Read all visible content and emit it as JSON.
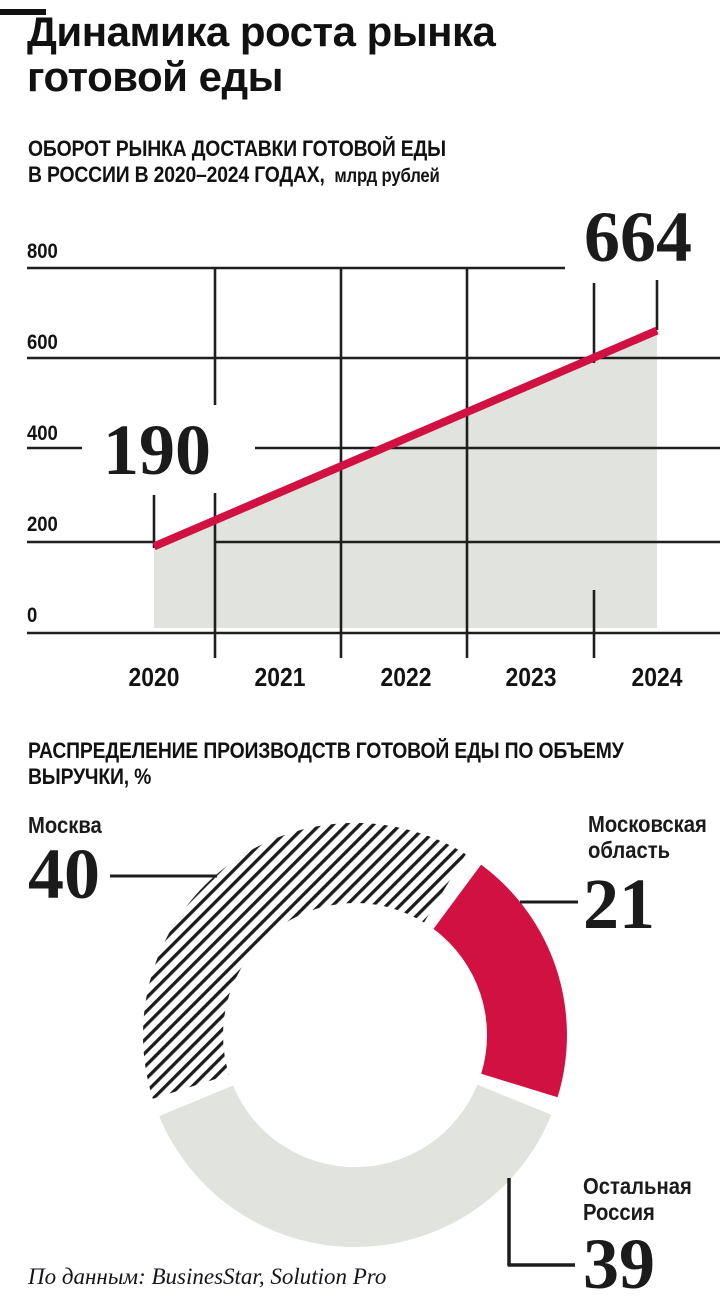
{
  "header": {
    "title_line1": "Динамика роста рынка",
    "title_line2": "готовой еды"
  },
  "colors": {
    "accent_red": "#d21143",
    "area_gray": "#e1e4de",
    "grid_black": "#1f1f1f",
    "text_black": "#131313"
  },
  "chart_data": [
    {
      "type": "area-line",
      "title": "ОБОРОТ РЫНКА ДОСТАВКИ ГОТОВОЙ ЕДЫ",
      "title_line2": "В РОССИИ В 2020–2024 ГОДАХ,",
      "unit": "млрд рублей",
      "x": [
        "2020",
        "2021",
        "2022",
        "2023",
        "2024"
      ],
      "points": [
        {
          "x": "2020",
          "y": 190
        },
        {
          "x": "2024",
          "y": 664
        }
      ],
      "interpolation": "linear",
      "label_start": "190",
      "label_end": "664",
      "y_ticks": [
        0,
        200,
        400,
        600,
        800
      ],
      "ylim": [
        0,
        880
      ],
      "grid": "crossed-segments",
      "legend": "none",
      "line_color": "#d21143",
      "area_color": "#e1e4de"
    },
    {
      "type": "donut",
      "title": "РАСПРЕДЕЛЕНИЕ ПРОИЗВОДСТВ ГОТОВОЙ ЕДЫ ПО ОБЪЕМУ",
      "title_line2": "ВЫРУЧКИ, %",
      "segments": [
        {
          "label": "Москва",
          "value": 40,
          "fill": "hatch"
        },
        {
          "label": "Московская область",
          "value": 21,
          "fill": "#d21143"
        },
        {
          "label": "Остальная Россия",
          "value": 39,
          "fill": "#e1e4de"
        }
      ],
      "start_angle_deg": 250,
      "gap_deg": 5,
      "legend": "callout-labels"
    }
  ],
  "footer": {
    "text": "По данным: BusinesStar, Solution Pro"
  }
}
